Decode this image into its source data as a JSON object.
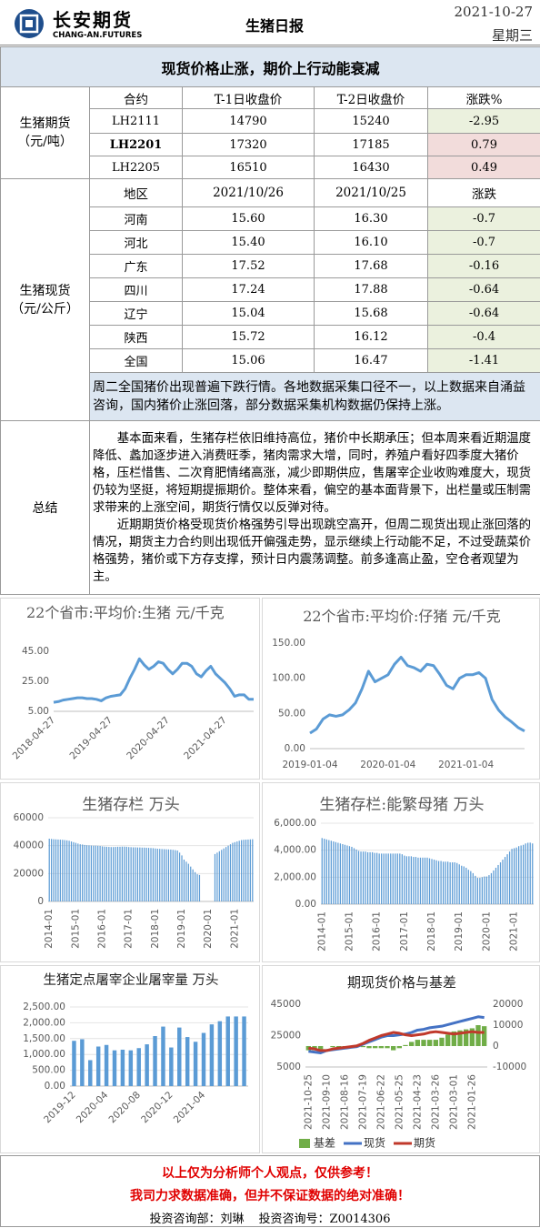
{
  "header": {
    "company": "长安期货",
    "company_en": "CHANG-AN.FUTURES",
    "title": "生猪日报",
    "date": "2021-10-27",
    "weekday": "星期三"
  },
  "banner": "现货价格止涨，期价上行动能衰减",
  "futures": {
    "label": "生猪期货",
    "unit": "（元/吨）",
    "columns": [
      "合约",
      "T-1日收盘价",
      "T-2日收盘价",
      "涨跌%"
    ],
    "rows": [
      [
        "LH2111",
        "14790",
        "15240",
        "-2.95"
      ],
      [
        "LH2201",
        "17320",
        "17185",
        "0.79"
      ],
      [
        "LH2205",
        "16510",
        "16430",
        "0.49"
      ]
    ]
  },
  "spot": {
    "label": "生猪现货",
    "unit": "（元/公斤）",
    "columns": [
      "地区",
      "2021/10/26",
      "2021/10/25",
      "涨跌"
    ],
    "rows": [
      [
        "河南",
        "15.60",
        "16.30",
        "-0.7"
      ],
      [
        "河北",
        "15.40",
        "16.10",
        "-0.7"
      ],
      [
        "广东",
        "17.52",
        "17.68",
        "-0.16"
      ],
      [
        "四川",
        "17.24",
        "17.88",
        "-0.64"
      ],
      [
        "辽宁",
        "15.04",
        "15.68",
        "-0.64"
      ],
      [
        "陕西",
        "15.72",
        "16.12",
        "-0.4"
      ],
      [
        "全国",
        "15.06",
        "16.47",
        "-1.41"
      ]
    ],
    "note": "周二全国猪价出现普遍下跌行情。各地数据采集口径不一，以上数据来自涌益咨询，国内猪价止涨回落，部分数据采集机构数据仍保持上涨。"
  },
  "summary": {
    "label": "总结",
    "paragraphs": [
      "基本面来看，生猪存栏依旧维持高位，猪价中长期承压；但本周来看近期温度降低、蠡加逐步进入消费旺季，猪肉需求大增，同时，养殖户看好四季度大猪价格，压栏惜售、二次育肥情绪高涨，减少即期供应，售屠宰企业收购难度大，现货仍较为坚挺，将短期提振期价。整体来看，偏空的基本面背景下，出栏量或压制需求带来的上涨空间，期货行情仅以反弹对待。",
      "近期期货价格受现货价格强势引导出现跳空高开，但周二现货出现止涨回落的情况，期货主力合约则出现低开偏强走势，显示继续上行动能不足，不过受蔬菜价格强势，猪价或下方存支撑，预计日内震荡调整。前多逢高止盈，空仓者观望为主。"
    ]
  },
  "chart_data": [
    {
      "type": "line",
      "title": "22个省市:平均价:生猪 元/千克",
      "color": "#5b9bd5",
      "grid": false,
      "categories": [
        "2018-04-27",
        null,
        null,
        null,
        null,
        null,
        null,
        null,
        null,
        null,
        null,
        null,
        "2019-04-27",
        null,
        null,
        null,
        null,
        null,
        null,
        null,
        null,
        null,
        null,
        null,
        "2020-04-27",
        null,
        null,
        null,
        null,
        null,
        null,
        null,
        null,
        null,
        null,
        null,
        "2021-04-27",
        null,
        null,
        null,
        null,
        null,
        null
      ],
      "values": [
        11,
        11.5,
        12.5,
        13,
        13.5,
        14,
        14,
        13.5,
        13.5,
        13,
        12,
        14,
        15,
        15.5,
        16,
        20,
        27,
        33,
        40,
        36,
        33,
        35,
        38,
        37,
        33,
        30,
        33,
        37,
        37,
        35,
        30,
        28,
        32,
        35,
        30,
        27,
        24,
        20,
        15,
        16,
        16,
        13,
        13
      ],
      "ylim": [
        5,
        45
      ],
      "yticks": [
        {
          "value": 5,
          "label": "5.00"
        },
        {
          "value": 25,
          "label": "25.00"
        },
        {
          "value": 45,
          "label": "45.00"
        }
      ]
    },
    {
      "type": "line",
      "title": "22个省市:平均价:仔猪 元/千克",
      "color": "#5b9bd5",
      "grid": false,
      "categories": [
        "2019-01-04",
        null,
        null,
        null,
        null,
        null,
        null,
        null,
        null,
        null,
        null,
        null,
        "2020-01-04",
        null,
        null,
        null,
        null,
        null,
        null,
        null,
        null,
        null,
        null,
        null,
        "2021-01-04",
        null,
        null,
        null,
        null,
        null,
        null,
        null,
        null,
        null
      ],
      "values": [
        22,
        28,
        42,
        48,
        46,
        48,
        55,
        65,
        85,
        110,
        95,
        100,
        105,
        120,
        130,
        118,
        115,
        110,
        120,
        118,
        105,
        90,
        85,
        100,
        105,
        105,
        108,
        100,
        70,
        55,
        45,
        38,
        30,
        25
      ],
      "ylim": [
        0,
        150
      ],
      "yticks": [
        {
          "value": 0,
          "label": "0.00"
        },
        {
          "value": 50,
          "label": "50.00"
        },
        {
          "value": 100,
          "label": "100.00"
        },
        {
          "value": 150,
          "label": "150.00"
        }
      ]
    },
    {
      "type": "bar",
      "title": "生猪存栏 万头",
      "color": "#5b9bd5",
      "grid": true,
      "categories": [
        "2014-01",
        null,
        null,
        null,
        null,
        null,
        null,
        null,
        null,
        null,
        null,
        null,
        "2015-01",
        null,
        null,
        null,
        null,
        null,
        null,
        null,
        null,
        null,
        null,
        null,
        "2016-01",
        null,
        null,
        null,
        null,
        null,
        null,
        null,
        null,
        null,
        null,
        null,
        "2017-01",
        null,
        null,
        null,
        null,
        null,
        null,
        null,
        null,
        null,
        null,
        null,
        "2018-01",
        null,
        null,
        null,
        null,
        null,
        null,
        null,
        null,
        null,
        null,
        null,
        "2019-01",
        null,
        null,
        null,
        null,
        null,
        null,
        null,
        null,
        null,
        null,
        null,
        "2020-01",
        null,
        null,
        null,
        null,
        null,
        null,
        null,
        null,
        null,
        null,
        null,
        "2021-01",
        null,
        null,
        null,
        null,
        null,
        null,
        null,
        null
      ],
      "values": [
        45000,
        44800,
        44600,
        44500,
        44400,
        44300,
        44200,
        44000,
        43800,
        43500,
        43000,
        42500,
        42000,
        41500,
        41000,
        40800,
        40500,
        40300,
        40200,
        40100,
        40000,
        40000,
        39900,
        39800,
        39500,
        39300,
        39200,
        39100,
        39000,
        39000,
        39100,
        39200,
        39200,
        39300,
        39300,
        39200,
        39000,
        38900,
        38800,
        38800,
        38700,
        38700,
        38600,
        38600,
        38500,
        38400,
        38300,
        38200,
        38000,
        37800,
        37700,
        37600,
        37500,
        37400,
        37300,
        37200,
        37000,
        36800,
        36500,
        35000,
        33000,
        30000,
        28500,
        27000,
        25000,
        23000,
        21000,
        19500,
        19000,
        null,
        null,
        null,
        null,
        null,
        null,
        34000,
        35000,
        36000,
        37000,
        38000,
        39000,
        40000,
        41000,
        42000,
        42500,
        43000,
        43500,
        44000,
        44200,
        44300,
        44400,
        44500,
        44600
      ],
      "ylim": [
        0,
        60000
      ],
      "yticks": [
        0,
        20000,
        40000,
        60000
      ]
    },
    {
      "type": "bar",
      "title": "生猪存栏:能繁母猪 万头",
      "color": "#5b9bd5",
      "grid": true,
      "categories": [
        "2014-01",
        null,
        null,
        null,
        null,
        null,
        null,
        null,
        null,
        null,
        null,
        null,
        "2015-01",
        null,
        null,
        null,
        null,
        null,
        null,
        null,
        null,
        null,
        null,
        null,
        "2016-01",
        null,
        null,
        null,
        null,
        null,
        null,
        null,
        null,
        null,
        null,
        null,
        "2017-01",
        null,
        null,
        null,
        null,
        null,
        null,
        null,
        null,
        null,
        null,
        null,
        "2018-01",
        null,
        null,
        null,
        null,
        null,
        null,
        null,
        null,
        null,
        null,
        null,
        "2019-01",
        null,
        null,
        null,
        null,
        null,
        null,
        null,
        null,
        null,
        null,
        null,
        "2020-01",
        null,
        null,
        null,
        null,
        null,
        null,
        null,
        null,
        null,
        null,
        null,
        "2021-01",
        null,
        null,
        null,
        null,
        null,
        null,
        null,
        null
      ],
      "values": [
        4900,
        4850,
        4800,
        4750,
        4700,
        4650,
        4600,
        4550,
        4500,
        4450,
        4400,
        4350,
        4300,
        4250,
        4150,
        4050,
        3950,
        3900,
        3900,
        3900,
        3850,
        3850,
        3850,
        3800,
        3800,
        3750,
        3750,
        3750,
        3750,
        3750,
        3750,
        3750,
        3750,
        3750,
        3750,
        3700,
        3600,
        3550,
        3550,
        3550,
        3500,
        3500,
        3450,
        3450,
        3450,
        3450,
        3450,
        3400,
        3350,
        3300,
        3250,
        3200,
        3200,
        3150,
        3150,
        3150,
        3100,
        3100,
        3100,
        3050,
        2950,
        2850,
        2800,
        2700,
        2550,
        2450,
        2300,
        2100,
        1950,
        1950,
        2000,
        2050,
        2050,
        2150,
        2300,
        2500,
        2700,
        2900,
        3100,
        3300,
        3500,
        3700,
        3900,
        4100,
        4150,
        4200,
        4300,
        4350,
        4400,
        4500,
        4550,
        4560,
        4500
      ],
      "ylim": [
        0,
        6000
      ],
      "yticks": [
        {
          "value": 0,
          "label": "0.00"
        },
        {
          "value": 2000,
          "label": "2,000.00"
        },
        {
          "value": 4000,
          "label": "4,000.00"
        },
        {
          "value": 6000,
          "label": "6,000.00"
        }
      ]
    },
    {
      "type": "bar",
      "title": "生猪定点屠宰企业屠宰量 万头",
      "color": "#5b9bd5",
      "grid": true,
      "categories": [
        "2019-12",
        null,
        null,
        null,
        "2020-04",
        null,
        null,
        null,
        "2020-08",
        null,
        null,
        null,
        "2020-12",
        null,
        null,
        null,
        "2021-04",
        null,
        null,
        null,
        null,
        null
      ],
      "values": [
        1430,
        1480,
        820,
        1250,
        1300,
        1130,
        1150,
        1130,
        1200,
        1320,
        1580,
        1880,
        1220,
        1850,
        1550,
        1400,
        1680,
        1950,
        2050,
        2200,
        2200,
        2200
      ],
      "ylim": [
        0,
        2500
      ],
      "yticks": [
        {
          "value": 0,
          "label": "0.00"
        },
        {
          "value": 500,
          "label": "500.00"
        },
        {
          "value": 1000,
          "label": "1,000.00"
        },
        {
          "value": 1500,
          "label": "1,500.00"
        },
        {
          "value": 2000,
          "label": "2,000.00"
        },
        {
          "value": 2500,
          "label": "2,500.00"
        }
      ]
    },
    {
      "type": "combo",
      "title": "期现货价格与基差",
      "grid": false,
      "categories": [
        "2021-10-25",
        null,
        null,
        "2021-09-10",
        null,
        null,
        "2021-08-16",
        null,
        null,
        "2021-07-19",
        null,
        null,
        "2021-06-22",
        null,
        null,
        "2021-05-25",
        null,
        null,
        "2021-04-23",
        null,
        null,
        "2021-03-26",
        null,
        null,
        "2021-03-01",
        null,
        null,
        "2021-01-26",
        null,
        null
      ],
      "series": [
        {
          "name": "基差",
          "type": "bar",
          "axis": "y2",
          "color": "#70ad47",
          "values": [
            -2000,
            -2000,
            -1500,
            0,
            -500,
            -500,
            -500,
            -500,
            -500,
            -500,
            -1000,
            -1000,
            -1000,
            -1000,
            -2000,
            -1000,
            500,
            2000,
            3000,
            3000,
            3000,
            3000,
            4000,
            5500,
            7000,
            7500,
            8000,
            8500,
            10000,
            9500
          ]
        },
        {
          "name": "现货",
          "type": "line",
          "color": "#4472c4",
          "values": [
            15000,
            14500,
            14000,
            15500,
            16000,
            16500,
            17000,
            17500,
            18000,
            19500,
            21000,
            22500,
            24000,
            25000,
            25000,
            25500,
            26000,
            27000,
            28500,
            29000,
            30000,
            30500,
            31000,
            32000,
            33000,
            34000,
            35000,
            36000,
            37000,
            36500
          ]
        },
        {
          "name": "期货",
          "type": "line",
          "color": "#c0392b",
          "values": [
            17000,
            16500,
            15500,
            15500,
            16500,
            17000,
            17500,
            18000,
            18500,
            20000,
            22000,
            23500,
            25000,
            26000,
            27000,
            26500,
            25500,
            25000,
            25500,
            26000,
            27000,
            27500,
            27000,
            26500,
            26000,
            26500,
            27000,
            27500,
            27000,
            27000
          ]
        }
      ],
      "ylim": [
        5000,
        45000
      ],
      "yticks": [
        5000,
        25000,
        45000
      ],
      "y2lim": [
        -10000,
        20000
      ],
      "y2ticks": [
        -10000,
        0,
        10000,
        20000
      ]
    }
  ],
  "footer": {
    "disclaimer1": "以上仅为分析师个人观点，仅供参考！",
    "disclaimer2": "我司力求数据准确，但并不保证数据的绝对准确！",
    "contact": "投资咨询部：刘琳",
    "license": "投资咨询号：Z0014306"
  }
}
